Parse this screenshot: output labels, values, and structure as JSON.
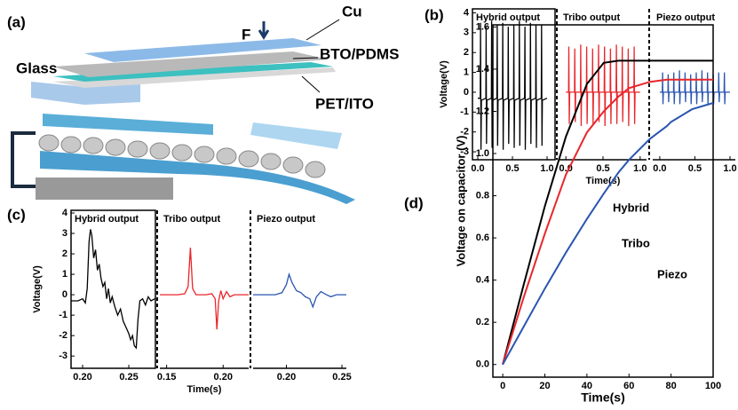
{
  "diagram": {
    "panel": "(a)",
    "labels": {
      "force": "F",
      "cu": "Cu",
      "bto": "BTO/PDMS",
      "glass": "Glass",
      "pet": "PET/ITO"
    }
  },
  "chart_data": [
    {
      "type": "line",
      "panel": "(b)",
      "title": "Hybrid output",
      "ylabel": "Voltage(V)",
      "x": [
        0,
        0.036,
        0.04,
        0.046,
        0.052,
        0.116,
        0.12,
        0.126,
        0.132,
        0.196,
        0.2,
        0.206,
        0.212,
        0.276,
        0.28,
        0.286,
        0.292,
        0.356,
        0.36,
        0.366,
        0.372,
        0.436,
        0.44,
        0.446,
        0.452,
        0.516,
        0.52,
        0.526,
        0.532,
        0.596,
        0.6,
        0.606,
        0.612,
        0.676,
        0.68,
        0.686,
        0.692,
        0.756,
        0.76,
        0.766,
        0.772,
        0.836,
        0.84,
        0.846,
        0.852,
        0.916,
        0.92,
        0.926,
        0.932,
        1.0
      ],
      "series": [
        {
          "color": "#000000",
          "values": [
            -0.3,
            -0.3,
            3.5,
            -2.9,
            -0.4,
            -0.3,
            3.3,
            -2.6,
            -0.4,
            -0.3,
            3.6,
            -2.8,
            -0.4,
            -0.3,
            3.4,
            -2.7,
            -0.4,
            -0.3,
            3.5,
            -2.9,
            -0.4,
            -0.3,
            3.3,
            -2.6,
            -0.4,
            -0.3,
            3.4,
            -2.8,
            -0.4,
            -0.3,
            3.6,
            -2.7,
            -0.4,
            -0.3,
            3.3,
            -2.9,
            -0.4,
            -0.3,
            3.5,
            -2.6,
            -0.4,
            -0.3,
            3.4,
            -2.8,
            -0.4,
            -0.3,
            3.4,
            -2.7,
            -0.4,
            -0.3
          ]
        }
      ],
      "xlim": [
        -0.077,
        1.115
      ],
      "ylim": [
        -3.4,
        4.2
      ],
      "xticks": [
        {
          "value": 0,
          "label": "0.0"
        },
        0.5,
        {
          "value": 1,
          "label": "1.0"
        }
      ],
      "yticks": [
        -3,
        -2,
        -1,
        0,
        1,
        2,
        3,
        4
      ]
    },
    {
      "type": "line",
      "title": "Tribo output",
      "xlabel": "Time(s)",
      "x": [
        0,
        0.036,
        0.04,
        0.046,
        0.052,
        0.116,
        0.12,
        0.126,
        0.132,
        0.196,
        0.2,
        0.206,
        0.212,
        0.276,
        0.28,
        0.286,
        0.292,
        0.356,
        0.36,
        0.366,
        0.372,
        0.436,
        0.44,
        0.446,
        0.452,
        0.516,
        0.52,
        0.526,
        0.532,
        0.596,
        0.6,
        0.606,
        0.612,
        0.676,
        0.68,
        0.686,
        0.692,
        0.756,
        0.76,
        0.766,
        0.772,
        0.836,
        0.84,
        0.846,
        0.852,
        0.916,
        0.92,
        0.926,
        0.932,
        1.0
      ],
      "series": [
        {
          "color": "#e8262b",
          "values": [
            0,
            0,
            2.3,
            -1.6,
            0,
            0,
            2.2,
            -1.5,
            0,
            0,
            2.4,
            -1.7,
            0,
            0,
            2.3,
            -1.6,
            0,
            0,
            2.2,
            -1.6,
            0,
            0,
            2.4,
            -1.5,
            0,
            0,
            2.3,
            -1.7,
            0,
            0,
            2.2,
            -1.6,
            0,
            0,
            2.4,
            -1.6,
            0,
            0,
            2.3,
            -1.5,
            0,
            0,
            2.2,
            -1.7,
            0,
            0,
            2.3,
            -1.6,
            0,
            0
          ]
        }
      ],
      "xlim": [
        -0.086,
        1.086
      ],
      "ylim": [
        -3.4,
        4.2
      ],
      "xticks": [
        {
          "value": 0,
          "label": "0.0"
        },
        0.5,
        {
          "value": 1,
          "label": "1.0"
        }
      ]
    },
    {
      "type": "line",
      "title": "Piezo output",
      "x": [
        0,
        0.036,
        0.04,
        0.046,
        0.052,
        0.116,
        0.12,
        0.126,
        0.132,
        0.196,
        0.2,
        0.206,
        0.212,
        0.276,
        0.28,
        0.286,
        0.292,
        0.356,
        0.36,
        0.366,
        0.372,
        0.436,
        0.44,
        0.446,
        0.452,
        0.516,
        0.52,
        0.526,
        0.532,
        0.596,
        0.6,
        0.606,
        0.612,
        0.676,
        0.68,
        0.686,
        0.692,
        0.756,
        0.76,
        0.766,
        0.772,
        0.836,
        0.84,
        0.846,
        0.852,
        0.916,
        0.92,
        0.926,
        0.932,
        1.0
      ],
      "series": [
        {
          "color": "#2a55b0",
          "values": [
            0,
            0,
            1.0,
            -0.6,
            0,
            0,
            0.9,
            -0.5,
            0,
            0,
            1.0,
            -0.6,
            0,
            0,
            1.1,
            -0.6,
            0,
            0,
            1.0,
            -0.5,
            0,
            0,
            0.9,
            -0.6,
            0,
            0,
            1.0,
            -0.6,
            0,
            0,
            1.1,
            -0.5,
            0,
            0,
            1.0,
            -0.6,
            0,
            0,
            0.9,
            -0.6,
            0,
            0,
            1.0,
            -0.5,
            0,
            0,
            1.0,
            -0.6,
            0,
            0
          ]
        }
      ],
      "xlim": [
        -0.1,
        1.076
      ],
      "ylim": [
        -3.4,
        4.2
      ],
      "xticks": [
        {
          "value": 0,
          "label": "0.0"
        },
        0.5,
        {
          "value": 1,
          "label": "1.0"
        }
      ]
    },
    {
      "type": "line",
      "panel": "(c)",
      "title": "Hybrid output",
      "ylabel": "Voltage(V)",
      "x": [
        0.188,
        0.195,
        0.2,
        0.203,
        0.205,
        0.207,
        0.2085,
        0.21,
        0.212,
        0.214,
        0.216,
        0.218,
        0.22,
        0.222,
        0.224,
        0.226,
        0.228,
        0.23,
        0.232,
        0.235,
        0.238,
        0.241,
        0.244,
        0.247,
        0.25,
        0.252,
        0.254,
        0.256,
        0.258,
        0.26,
        0.262,
        0.265,
        0.268,
        0.271,
        0.274,
        0.278
      ],
      "series": [
        {
          "color": "#000000",
          "values": [
            -0.3,
            -0.3,
            -0.2,
            -0.4,
            0.3,
            2.6,
            3.2,
            2.9,
            1.8,
            2.2,
            1.2,
            1.5,
            0.8,
            0.4,
            0.6,
            -0.2,
            0.3,
            -0.4,
            -0.1,
            -0.6,
            -1.0,
            -0.7,
            -1.3,
            -1.6,
            -1.9,
            -2.2,
            -2.0,
            -2.5,
            -2.6,
            -1.2,
            -0.3,
            -0.2,
            -0.5,
            -0.1,
            -0.3,
            -0.2
          ]
        }
      ],
      "xlim": [
        0.1875,
        0.2788
      ],
      "ylim": [
        -3.6,
        4.13
      ],
      "xticks": [
        {
          "value": 0.2,
          "label": "0.20"
        },
        0.25
      ],
      "yticks": [
        -3,
        -2,
        -1,
        0,
        1,
        2,
        3,
        4
      ]
    },
    {
      "type": "line",
      "title": "Tribo output",
      "xlabel": "Time(s)",
      "x": [
        0.144,
        0.16,
        0.166,
        0.169,
        0.171,
        0.173,
        0.176,
        0.185,
        0.19,
        0.193,
        0.1945,
        0.196,
        0.198,
        0.2,
        0.203,
        0.206,
        0.21,
        0.2226
      ],
      "series": [
        {
          "color": "#e8262b",
          "values": [
            0,
            0,
            0.05,
            0.4,
            2.3,
            0.3,
            0,
            0,
            0.05,
            -0.2,
            -1.7,
            -0.3,
            0.2,
            -0.2,
            0.15,
            -0.1,
            0,
            0
          ]
        }
      ],
      "xlim": [
        0.144,
        0.2226
      ],
      "ylim": [
        -3.6,
        4.13
      ],
      "xticks": [
        0.15,
        {
          "value": 0.2,
          "label": "0.20"
        }
      ]
    },
    {
      "type": "line",
      "title": "Piezo output",
      "x": [
        0.17,
        0.19,
        0.196,
        0.2,
        0.2024,
        0.205,
        0.209,
        0.213,
        0.217,
        0.221,
        0.2238,
        0.227,
        0.231,
        0.236,
        0.24,
        0.245,
        0.254
      ],
      "series": [
        {
          "color": "#2a55b0",
          "values": [
            0,
            0,
            0.1,
            0.5,
            1.0,
            0.6,
            0.2,
            0.1,
            -0.1,
            -0.2,
            -0.6,
            -0.1,
            0.15,
            0,
            -0.1,
            0,
            0
          ]
        }
      ],
      "xlim": [
        0.17,
        0.254
      ],
      "ylim": [
        -3.6,
        4.13
      ],
      "xticks": [
        {
          "value": 0.2,
          "label": "0.20"
        },
        0.25
      ]
    },
    {
      "type": "line",
      "panel": "(d)",
      "ylabel": "Voltage on capacitor (V)",
      "xlabel": "Time(s)",
      "x": [
        0,
        10,
        20,
        30,
        40,
        48,
        55,
        60,
        70,
        78,
        80,
        90,
        100
      ],
      "series": [
        {
          "name": "Hybrid",
          "color": "#000000",
          "values": [
            0,
            0.38,
            0.75,
            1.08,
            1.33,
            1.43,
            1.44,
            1.44,
            1.44,
            1.44,
            1.44,
            1.44,
            1.44
          ]
        },
        {
          "name": "Tribo",
          "color": "#e8262b",
          "values": [
            0,
            0.32,
            0.62,
            0.9,
            1.1,
            1.2,
            1.27,
            1.31,
            1.34,
            1.35,
            1.35,
            1.35,
            1.35
          ]
        },
        {
          "name": "Piezo",
          "color": "#2a55b0",
          "values": [
            0,
            0.18,
            0.36,
            0.53,
            0.69,
            0.81,
            0.91,
            0.97,
            1.07,
            1.13,
            1.15,
            1.21,
            1.24
          ]
        }
      ],
      "xlim": [
        -4.7,
        100
      ],
      "ylim": [
        -0.06,
        1.61
      ],
      "xticks": [
        0,
        20,
        40,
        60,
        80,
        100
      ],
      "yticks": [
        {
          "value": 0,
          "label": "0.0"
        },
        0.2,
        0.4,
        0.6,
        0.8,
        {
          "value": 1,
          "label": "1.0"
        },
        1.2,
        1.4,
        1.6
      ]
    }
  ]
}
